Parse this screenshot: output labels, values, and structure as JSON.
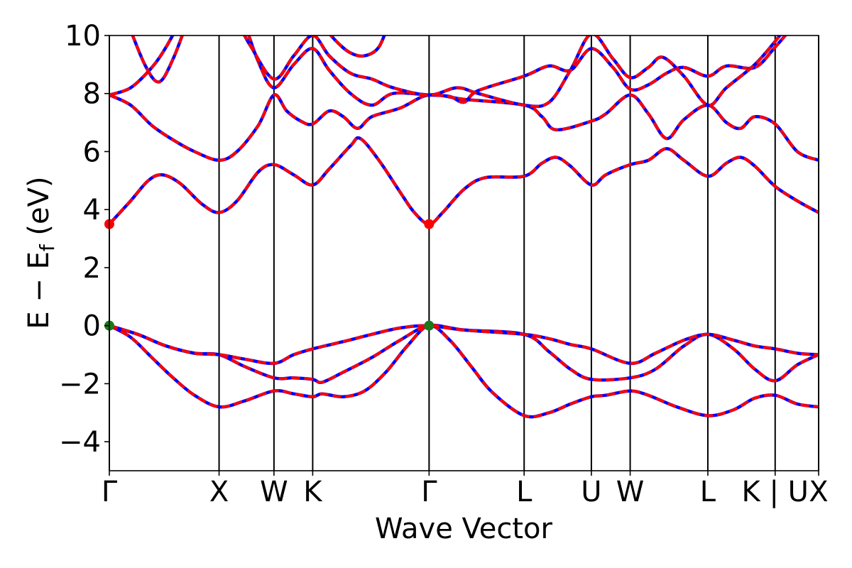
{
  "chart_data": {
    "type": "line",
    "title": "",
    "xlabel": "Wave Vector",
    "ylabel": "E − Eƒ (eV)",
    "ylabel_main": "E − E",
    "ylabel_sub": "f",
    "ylabel_unit": " (eV)",
    "ylim": [
      -5,
      10
    ],
    "xlim": [
      0,
      1
    ],
    "yticks": [
      -4,
      -2,
      0,
      2,
      4,
      6,
      8,
      10
    ],
    "ytick_labels": [
      "−4",
      "−2",
      "0",
      "2",
      "4",
      "6",
      "8",
      "10"
    ],
    "kpoints": [
      {
        "label": "Γ",
        "x": 0.0
      },
      {
        "label": "X",
        "x": 0.1547
      },
      {
        "label": "W",
        "x": 0.2321
      },
      {
        "label": "K",
        "x": 0.2867
      },
      {
        "label": "Γ",
        "x": 0.4508
      },
      {
        "label": "L",
        "x": 0.5848
      },
      {
        "label": "U",
        "x": 0.6796
      },
      {
        "label": "W",
        "x": 0.7343
      },
      {
        "label": "L",
        "x": 0.8438
      },
      {
        "label": "K | U",
        "x": 0.9387
      },
      {
        "label": "X",
        "x": 1.0
      }
    ],
    "band_colors": {
      "solid": "#0000ff",
      "dashed": "#ff0000"
    },
    "series": [
      {
        "points": [
          [
            0,
            0
          ],
          [
            0.03,
            -0.4
          ],
          [
            0.06,
            -1.1
          ],
          [
            0.09,
            -1.8
          ],
          [
            0.12,
            -2.4
          ],
          [
            0.1547,
            -2.8
          ],
          [
            0.19,
            -2.6
          ],
          [
            0.2321,
            -2.25
          ],
          [
            0.26,
            -2.35
          ],
          [
            0.2867,
            -2.45
          ],
          [
            0.3,
            -2.35
          ],
          [
            0.33,
            -2.45
          ],
          [
            0.36,
            -2.25
          ],
          [
            0.39,
            -1.6
          ],
          [
            0.42,
            -0.7
          ],
          [
            0.4508,
            0
          ],
          [
            0.48,
            -0.5
          ],
          [
            0.51,
            -1.4
          ],
          [
            0.54,
            -2.3
          ],
          [
            0.5848,
            -3.1
          ],
          [
            0.62,
            -3.0
          ],
          [
            0.65,
            -2.7
          ],
          [
            0.6796,
            -2.45
          ],
          [
            0.7,
            -2.4
          ],
          [
            0.7343,
            -2.25
          ],
          [
            0.76,
            -2.4
          ],
          [
            0.8,
            -2.8
          ],
          [
            0.8438,
            -3.1
          ],
          [
            0.88,
            -2.9
          ],
          [
            0.91,
            -2.5
          ],
          [
            0.9387,
            -2.4
          ],
          [
            0.97,
            -2.7
          ],
          [
            1.0,
            -2.8
          ]
        ]
      },
      {
        "points": [
          [
            0,
            0
          ],
          [
            0.04,
            -0.3
          ],
          [
            0.08,
            -0.7
          ],
          [
            0.12,
            -0.95
          ],
          [
            0.1547,
            -1.0
          ],
          [
            0.19,
            -1.4
          ],
          [
            0.2321,
            -1.8
          ],
          [
            0.26,
            -1.8
          ],
          [
            0.2867,
            -1.85
          ],
          [
            0.3,
            -1.95
          ],
          [
            0.33,
            -1.6
          ],
          [
            0.37,
            -1.1
          ],
          [
            0.41,
            -0.5
          ],
          [
            0.4508,
            0
          ],
          [
            0.5,
            -0.15
          ],
          [
            0.5848,
            -0.3
          ],
          [
            0.62,
            -0.9
          ],
          [
            0.65,
            -1.5
          ],
          [
            0.6796,
            -1.85
          ],
          [
            0.7343,
            -1.8
          ],
          [
            0.77,
            -1.5
          ],
          [
            0.81,
            -0.7
          ],
          [
            0.8438,
            -0.3
          ],
          [
            0.88,
            -0.8
          ],
          [
            0.91,
            -1.5
          ],
          [
            0.9387,
            -1.9
          ],
          [
            0.97,
            -1.35
          ],
          [
            1.0,
            -1.0
          ]
        ]
      },
      {
        "points": [
          [
            0,
            0
          ],
          [
            0.04,
            -0.3
          ],
          [
            0.08,
            -0.7
          ],
          [
            0.12,
            -0.95
          ],
          [
            0.1547,
            -1.0
          ],
          [
            0.19,
            -1.15
          ],
          [
            0.2321,
            -1.3
          ],
          [
            0.26,
            -1.0
          ],
          [
            0.2867,
            -0.8
          ],
          [
            0.33,
            -0.55
          ],
          [
            0.37,
            -0.3
          ],
          [
            0.41,
            -0.08
          ],
          [
            0.4508,
            0
          ],
          [
            0.5,
            -0.15
          ],
          [
            0.5848,
            -0.3
          ],
          [
            0.62,
            -0.45
          ],
          [
            0.65,
            -0.65
          ],
          [
            0.6796,
            -0.8
          ],
          [
            0.7343,
            -1.3
          ],
          [
            0.77,
            -0.95
          ],
          [
            0.81,
            -0.5
          ],
          [
            0.8438,
            -0.3
          ],
          [
            0.88,
            -0.5
          ],
          [
            0.91,
            -0.7
          ],
          [
            0.9387,
            -0.8
          ],
          [
            0.97,
            -0.95
          ],
          [
            1.0,
            -1.0
          ]
        ]
      },
      {
        "points": [
          [
            0,
            3.5
          ],
          [
            0.03,
            4.3
          ],
          [
            0.055,
            5.0
          ],
          [
            0.075,
            5.2
          ],
          [
            0.1,
            4.9
          ],
          [
            0.13,
            4.2
          ],
          [
            0.1547,
            3.9
          ],
          [
            0.18,
            4.3
          ],
          [
            0.21,
            5.3
          ],
          [
            0.2321,
            5.55
          ],
          [
            0.26,
            5.2
          ],
          [
            0.2867,
            4.85
          ],
          [
            0.31,
            5.4
          ],
          [
            0.34,
            6.2
          ],
          [
            0.3538,
            6.45
          ],
          [
            0.38,
            5.7
          ],
          [
            0.41,
            4.6
          ],
          [
            0.43,
            3.9
          ],
          [
            0.4508,
            3.5
          ],
          [
            0.47,
            3.9
          ],
          [
            0.5,
            4.7
          ],
          [
            0.53,
            5.1
          ],
          [
            0.5848,
            5.15
          ],
          [
            0.61,
            5.6
          ],
          [
            0.63,
            5.8
          ],
          [
            0.65,
            5.5
          ],
          [
            0.6796,
            4.85
          ],
          [
            0.7,
            5.2
          ],
          [
            0.7343,
            5.55
          ],
          [
            0.76,
            5.7
          ],
          [
            0.7856,
            6.1
          ],
          [
            0.81,
            5.7
          ],
          [
            0.8438,
            5.15
          ],
          [
            0.87,
            5.6
          ],
          [
            0.89,
            5.8
          ],
          [
            0.91,
            5.5
          ],
          [
            0.9387,
            4.8
          ],
          [
            0.97,
            4.3
          ],
          [
            1.0,
            3.9
          ]
        ]
      },
      {
        "points": [
          [
            0,
            7.95
          ],
          [
            0.03,
            7.6
          ],
          [
            0.06,
            6.9
          ],
          [
            0.09,
            6.4
          ],
          [
            0.12,
            6.0
          ],
          [
            0.1547,
            5.7
          ],
          [
            0.18,
            6.0
          ],
          [
            0.21,
            6.9
          ],
          [
            0.2321,
            7.95
          ],
          [
            0.25,
            7.4
          ],
          [
            0.27,
            7.05
          ],
          [
            0.2867,
            6.95
          ],
          [
            0.31,
            7.4
          ],
          [
            0.33,
            7.2
          ],
          [
            0.35,
            6.8
          ],
          [
            0.37,
            7.2
          ],
          [
            0.41,
            7.5
          ],
          [
            0.4508,
            7.95
          ],
          [
            0.5,
            7.8
          ],
          [
            0.5848,
            7.6
          ],
          [
            0.61,
            7.2
          ],
          [
            0.63,
            6.75
          ],
          [
            0.6796,
            7.05
          ],
          [
            0.7,
            7.3
          ],
          [
            0.7343,
            7.95
          ],
          [
            0.76,
            7.3
          ],
          [
            0.7856,
            6.45
          ],
          [
            0.81,
            7.1
          ],
          [
            0.8438,
            7.6
          ],
          [
            0.87,
            7.0
          ],
          [
            0.89,
            6.8
          ],
          [
            0.91,
            7.2
          ],
          [
            0.9387,
            6.95
          ],
          [
            0.97,
            6.0
          ],
          [
            1.0,
            5.7
          ]
        ]
      },
      {
        "points": [
          [
            0,
            7.95
          ],
          [
            0.03,
            8.2
          ],
          [
            0.06,
            8.9
          ],
          [
            0.08,
            9.6
          ],
          [
            0.1,
            10.5
          ]
        ]
      },
      {
        "points": [
          [
            0.025,
            10.5
          ],
          [
            0.05,
            9.0
          ],
          [
            0.07,
            8.4
          ],
          [
            0.09,
            9.2
          ],
          [
            0.11,
            10.5
          ]
        ]
      },
      {
        "points": [
          [
            0.19,
            10.5
          ],
          [
            0.21,
            9.1
          ],
          [
            0.2321,
            8.2
          ],
          [
            0.26,
            9.0
          ],
          [
            0.2867,
            9.55
          ],
          [
            0.31,
            8.8
          ],
          [
            0.34,
            8.0
          ],
          [
            0.37,
            7.6
          ],
          [
            0.4,
            8.0
          ],
          [
            0.4508,
            7.95
          ],
          [
            0.48,
            7.9
          ],
          [
            0.5,
            7.7
          ],
          [
            0.52,
            8.1
          ],
          [
            0.5848,
            8.6
          ],
          [
            0.62,
            8.95
          ],
          [
            0.65,
            8.8
          ],
          [
            0.6796,
            9.55
          ],
          [
            0.71,
            8.9
          ],
          [
            0.7343,
            8.15
          ],
          [
            0.76,
            8.3
          ],
          [
            0.7856,
            8.7
          ],
          [
            0.81,
            8.9
          ],
          [
            0.8438,
            8.6
          ],
          [
            0.87,
            8.95
          ],
          [
            0.91,
            8.9
          ],
          [
            0.9387,
            9.6
          ],
          [
            0.97,
            10.5
          ]
        ]
      },
      {
        "points": [
          [
            0.18,
            10.5
          ],
          [
            0.2,
            9.6
          ],
          [
            0.2321,
            8.5
          ],
          [
            0.26,
            9.3
          ],
          [
            0.2867,
            10.0
          ],
          [
            0.31,
            9.3
          ],
          [
            0.34,
            8.7
          ],
          [
            0.37,
            8.5
          ],
          [
            0.4,
            8.2
          ],
          [
            0.4508,
            7.95
          ],
          [
            0.49,
            8.2
          ],
          [
            0.52,
            8.0
          ],
          [
            0.5848,
            7.6
          ],
          [
            0.62,
            7.7
          ],
          [
            0.65,
            8.8
          ],
          [
            0.6796,
            10.05
          ],
          [
            0.71,
            9.2
          ],
          [
            0.7343,
            8.55
          ],
          [
            0.76,
            8.9
          ],
          [
            0.78,
            9.25
          ],
          [
            0.81,
            8.6
          ],
          [
            0.8438,
            7.6
          ],
          [
            0.87,
            8.2
          ],
          [
            0.91,
            9.0
          ],
          [
            0.9387,
            9.8
          ],
          [
            0.96,
            10.5
          ]
        ]
      },
      {
        "points": [
          [
            0.295,
            10.5
          ],
          [
            0.32,
            9.8
          ],
          [
            0.34,
            9.4
          ],
          [
            0.36,
            9.3
          ],
          [
            0.38,
            9.6
          ],
          [
            0.395,
            10.5
          ]
        ]
      }
    ],
    "markers": [
      {
        "x": 0.0,
        "y": 3.5,
        "color": "#ff0000"
      },
      {
        "x": 0.4508,
        "y": 3.5,
        "color": "#ff0000"
      },
      {
        "x": 0.0,
        "y": 0.0,
        "color": "#1a7a1a"
      },
      {
        "x": 0.4508,
        "y": 0.0,
        "color": "#1a7a1a"
      }
    ]
  }
}
